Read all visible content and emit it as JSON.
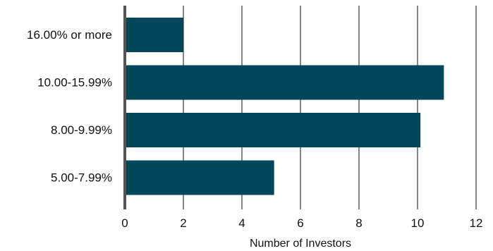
{
  "chart_data": {
    "type": "bar",
    "orientation": "horizontal",
    "categories": [
      "16.00% or more",
      "10.00-15.99%",
      "8.00-9.99%",
      "5.00-7.99%"
    ],
    "values": [
      2,
      10.9,
      10.1,
      5.1
    ],
    "xlabel": "Number of Investors",
    "ylabel": "",
    "xlim": [
      0,
      12
    ],
    "xticks": [
      0,
      2,
      4,
      6,
      8,
      10,
      12
    ],
    "xtick_labels": [
      "0",
      "2",
      "4",
      "6",
      "8",
      "10",
      "12"
    ],
    "grid": "vertical",
    "legend": "none",
    "colors": {
      "bar": "#03475a",
      "grid": "#444444",
      "axis": "#555555"
    }
  }
}
